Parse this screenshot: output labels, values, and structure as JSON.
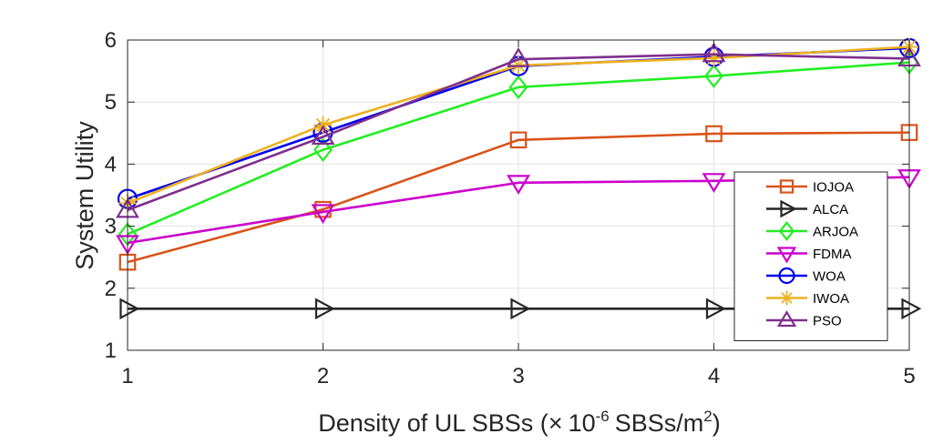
{
  "chart_data": {
    "type": "line",
    "title": "",
    "xlabel": {
      "prefix": "Density of UL SBSs (",
      "times": "×",
      "base": "10",
      "exponent": "-6",
      "unit": "SBSs/m",
      "unit_exp": "2",
      "suffix": ")"
    },
    "ylabel": "System Utility",
    "xlim": [
      1,
      5
    ],
    "ylim": [
      1,
      6
    ],
    "xticks": [
      1,
      2,
      3,
      4,
      5
    ],
    "yticks": [
      1,
      2,
      3,
      4,
      5,
      6
    ],
    "x": [
      1,
      2,
      3,
      4,
      5
    ],
    "grid": true,
    "legend_position": "right-center",
    "series": [
      {
        "name": "IOJOA",
        "color": "#D95319",
        "marker": "square",
        "values": [
          2.42,
          3.27,
          4.39,
          4.49,
          4.51
        ]
      },
      {
        "name": "ALCA",
        "color": "#262626",
        "marker": "triangle-right",
        "values": [
          1.67,
          1.67,
          1.67,
          1.67,
          1.67
        ]
      },
      {
        "name": "ARJOA",
        "color": "#22EE22",
        "marker": "diamond",
        "values": [
          2.87,
          4.23,
          5.24,
          5.42,
          5.64
        ]
      },
      {
        "name": "FDMA",
        "color": "#CC00CC",
        "marker": "triangle-down",
        "values": [
          2.73,
          3.23,
          3.7,
          3.73,
          3.79
        ]
      },
      {
        "name": "WOA",
        "color": "#0000EE",
        "marker": "circle",
        "values": [
          3.44,
          4.51,
          5.58,
          5.73,
          5.87
        ]
      },
      {
        "name": "IWOA",
        "color": "#EDB120",
        "marker": "asterisk",
        "values": [
          3.37,
          4.63,
          5.59,
          5.71,
          5.89
        ]
      },
      {
        "name": "PSO",
        "color": "#7E2F8E",
        "marker": "triangle-up",
        "values": [
          3.26,
          4.44,
          5.69,
          5.77,
          5.7
        ]
      }
    ]
  }
}
